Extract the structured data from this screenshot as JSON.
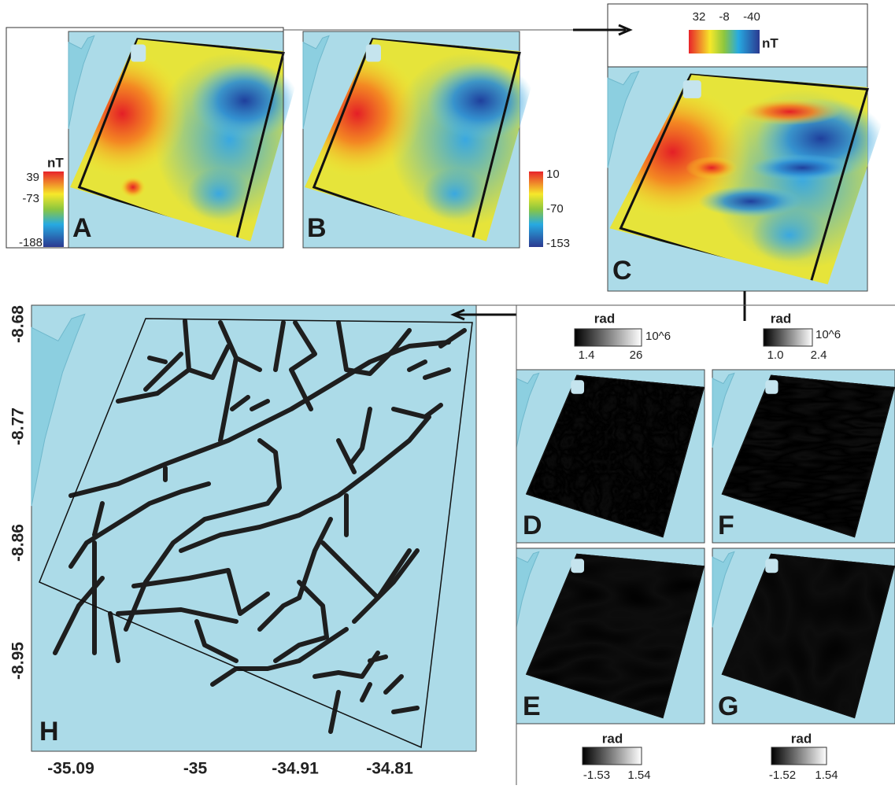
{
  "panels": {
    "A": {
      "label": "A",
      "colorbar": {
        "unit": "nT",
        "ticks": [
          "39",
          "-73",
          "-188"
        ]
      }
    },
    "B": {
      "label": "B",
      "colorbar": {
        "ticks": [
          "10",
          "-70",
          "-153"
        ]
      }
    },
    "C": {
      "label": "C",
      "colorbar": {
        "unit": "nT",
        "ticks": [
          "32",
          "-8",
          "-40"
        ]
      }
    },
    "D": {
      "label": "D",
      "colorbar": {
        "unit": "rad",
        "scale": "10^6",
        "ticks": [
          "1.4",
          "26"
        ]
      }
    },
    "E": {
      "label": "E",
      "colorbar": {
        "unit": "rad",
        "ticks": [
          "-1.53",
          "1.54"
        ]
      }
    },
    "F": {
      "label": "F",
      "colorbar": {
        "unit": "rad",
        "scale": "10^6",
        "ticks": [
          "1.0",
          "2.4"
        ]
      }
    },
    "G": {
      "label": "G",
      "colorbar": {
        "unit": "rad",
        "ticks": [
          "-1.52",
          "1.54"
        ]
      }
    },
    "H": {
      "label": "H",
      "yticks": [
        "-8.68",
        "-8.77",
        "-8.86",
        "-8.95"
      ],
      "xticks": [
        "-35.09",
        "-35",
        "-34.91",
        "-34.81"
      ]
    }
  }
}
